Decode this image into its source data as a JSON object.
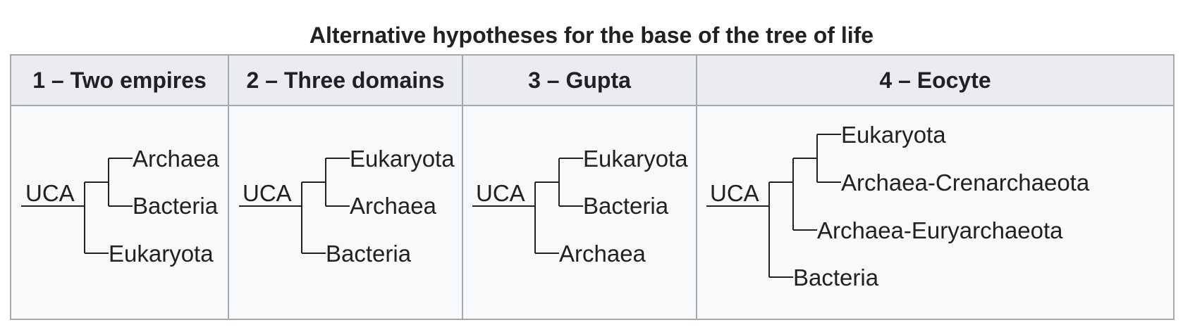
{
  "caption": "Alternative hypotheses for the base of the tree of life",
  "columns": [
    {
      "header": "1 – Two empires",
      "root": "UCA",
      "tree": [
        [
          "Archaea",
          "Bacteria"
        ],
        "Eukaryota"
      ],
      "leaves": [
        "Archaea",
        "Bacteria",
        "Eukaryota"
      ]
    },
    {
      "header": "2 – Three domains",
      "root": "UCA",
      "tree": [
        [
          "Eukaryota",
          "Archaea"
        ],
        "Bacteria"
      ],
      "leaves": [
        "Eukaryota",
        "Archaea",
        "Bacteria"
      ]
    },
    {
      "header": "3 – Gupta",
      "root": "UCA",
      "tree": [
        [
          "Eukaryota",
          "Bacteria"
        ],
        "Archaea"
      ],
      "leaves": [
        "Eukaryota",
        "Bacteria",
        "Archaea"
      ]
    },
    {
      "header": "4 – Eocyte",
      "root": "UCA",
      "tree": [
        [
          [
            "Eukaryota",
            "Archaea-Crenarchaeota"
          ],
          "Archaea-Euryarchaeota"
        ],
        "Bacteria"
      ],
      "leaves": [
        "Eukaryota",
        "Archaea-Crenarchaeota",
        "Archaea-Euryarchaeota",
        "Bacteria"
      ]
    }
  ]
}
